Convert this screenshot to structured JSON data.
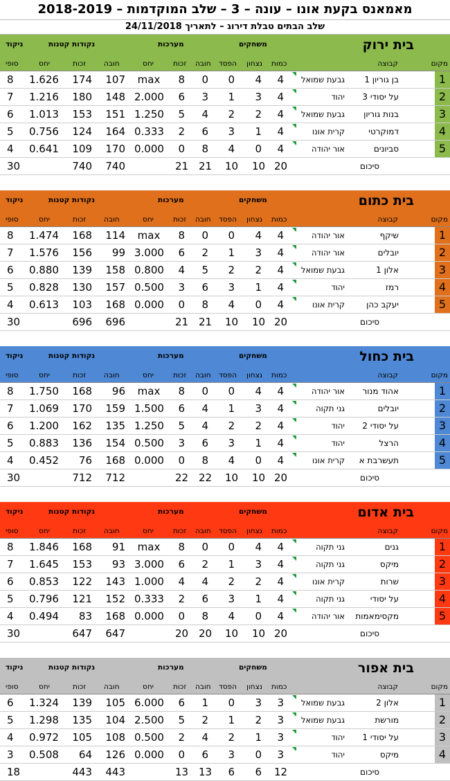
{
  "header": {
    "title": "מאמאנס בקעת אונו – עונה – 3 – שלב המוקדמות – 2018-2019",
    "subtitle": "שלב הבתים טבלת דירוג – לתאריך 24/11/2018"
  },
  "labels": {
    "players": "משחקים",
    "sets": "מערכות",
    "points": "נקודות קטנות",
    "score": "ניקוד",
    "rank": "מקום",
    "team": "קבוצה",
    "games": "כמות",
    "wins": "נצחון",
    "loss": "הפסד",
    "lost": "חובה",
    "won": "זכות",
    "ratio": "יחס",
    "final": "סופי",
    "total": "סיכום"
  },
  "houses": [
    {
      "name": "בית ירוק",
      "color": "#8cba4c",
      "rows": [
        {
          "rank": "1",
          "player": "בן גוריון 1",
          "team": "גבעת שמואל",
          "games": "4",
          "wins": "4",
          "loss": "0",
          "sl": "0",
          "sw": "8",
          "srat": "max",
          "pl": "107",
          "pw": "174",
          "prat": "1.626",
          "score": "8"
        },
        {
          "rank": "2",
          "player": "על יסודי 3",
          "team": "יהוד",
          "games": "4",
          "wins": "3",
          "loss": "1",
          "sl": "3",
          "sw": "6",
          "srat": "2.000",
          "pl": "148",
          "pw": "180",
          "prat": "1.216",
          "score": "7"
        },
        {
          "rank": "3",
          "player": "בנות גוריון",
          "team": "גבעת שמואל",
          "games": "4",
          "wins": "2",
          "loss": "2",
          "sl": "4",
          "sw": "5",
          "srat": "1.250",
          "pl": "151",
          "pw": "153",
          "prat": "1.013",
          "score": "6"
        },
        {
          "rank": "4",
          "player": "דמוקרטי",
          "team": "קרית אונו",
          "games": "4",
          "wins": "1",
          "loss": "3",
          "sl": "6",
          "sw": "2",
          "srat": "0.333",
          "pl": "164",
          "pw": "124",
          "prat": "0.756",
          "score": "5"
        },
        {
          "rank": "5",
          "player": "סביונים",
          "team": "אור יהודה",
          "games": "4",
          "wins": "0",
          "loss": "4",
          "sl": "8",
          "sw": "0",
          "srat": "0.000",
          "pl": "170",
          "pw": "109",
          "prat": "0.641",
          "score": "4"
        }
      ],
      "totals": {
        "games": "20",
        "wins": "10",
        "loss": "10",
        "sl": "21",
        "sw": "21",
        "pl": "740",
        "pw": "740",
        "score": "30"
      }
    },
    {
      "name": "בית כתום",
      "color": "#e0701b",
      "rows": [
        {
          "rank": "1",
          "player": "שיקף",
          "team": "אור יהודה",
          "games": "4",
          "wins": "4",
          "loss": "0",
          "sl": "0",
          "sw": "8",
          "srat": "max",
          "pl": "114",
          "pw": "168",
          "prat": "1.474",
          "score": "8"
        },
        {
          "rank": "2",
          "player": "יובלים",
          "team": "אור יהודה",
          "games": "4",
          "wins": "3",
          "loss": "1",
          "sl": "2",
          "sw": "6",
          "srat": "3.000",
          "pl": "99",
          "pw": "156",
          "prat": "1.576",
          "score": "7"
        },
        {
          "rank": "3",
          "player": "אלון 1",
          "team": "גבעת שמואל",
          "games": "4",
          "wins": "2",
          "loss": "2",
          "sl": "5",
          "sw": "4",
          "srat": "0.800",
          "pl": "158",
          "pw": "139",
          "prat": "0.880",
          "score": "6"
        },
        {
          "rank": "4",
          "player": "רמז",
          "team": "יהוד",
          "games": "4",
          "wins": "1",
          "loss": "3",
          "sl": "6",
          "sw": "3",
          "srat": "0.500",
          "pl": "157",
          "pw": "130",
          "prat": "0.828",
          "score": "5"
        },
        {
          "rank": "5",
          "player": "יעקב כהן",
          "team": "קרית אונו",
          "games": "4",
          "wins": "0",
          "loss": "4",
          "sl": "8",
          "sw": "0",
          "srat": "0.000",
          "pl": "168",
          "pw": "103",
          "prat": "0.613",
          "score": "4"
        }
      ],
      "totals": {
        "games": "20",
        "wins": "10",
        "loss": "10",
        "sl": "21",
        "sw": "21",
        "pl": "696",
        "pw": "696",
        "score": "30"
      }
    },
    {
      "name": "בית כחול",
      "color": "#4f88d4",
      "rows": [
        {
          "rank": "1",
          "player": "אהוד מנור",
          "team": "אור יהודה",
          "games": "4",
          "wins": "4",
          "loss": "0",
          "sl": "0",
          "sw": "8",
          "srat": "max",
          "pl": "96",
          "pw": "168",
          "prat": "1.750",
          "score": "8"
        },
        {
          "rank": "2",
          "player": "יובלים",
          "team": "גני תקוה",
          "games": "4",
          "wins": "3",
          "loss": "1",
          "sl": "4",
          "sw": "6",
          "srat": "1.500",
          "pl": "159",
          "pw": "170",
          "prat": "1.069",
          "score": "7"
        },
        {
          "rank": "3",
          "player": "על יסודי 2",
          "team": "יהוד",
          "games": "4",
          "wins": "2",
          "loss": "2",
          "sl": "4",
          "sw": "5",
          "srat": "1.250",
          "pl": "135",
          "pw": "162",
          "prat": "1.200",
          "score": "6"
        },
        {
          "rank": "4",
          "player": "הרצל",
          "team": "יהוד",
          "games": "4",
          "wins": "1",
          "loss": "3",
          "sl": "6",
          "sw": "3",
          "srat": "0.500",
          "pl": "154",
          "pw": "136",
          "prat": "0.883",
          "score": "5"
        },
        {
          "rank": "5",
          "player": "תעשרבת א",
          "team": "קרית אונו",
          "games": "4",
          "wins": "0",
          "loss": "4",
          "sl": "8",
          "sw": "0",
          "srat": "0.000",
          "pl": "168",
          "pw": "76",
          "prat": "0.452",
          "score": "4"
        }
      ],
      "totals": {
        "games": "20",
        "wins": "10",
        "loss": "10",
        "sl": "22",
        "sw": "22",
        "pl": "712",
        "pw": "712",
        "score": "30"
      }
    },
    {
      "name": "בית אדום",
      "color": "#ff3a12",
      "rows": [
        {
          "rank": "1",
          "player": "גנים",
          "team": "גני תקוה",
          "games": "4",
          "wins": "4",
          "loss": "0",
          "sl": "0",
          "sw": "8",
          "srat": "max",
          "pl": "91",
          "pw": "168",
          "prat": "1.846",
          "score": "8"
        },
        {
          "rank": "2",
          "player": "מיקס",
          "team": "גני תקוה",
          "games": "4",
          "wins": "3",
          "loss": "1",
          "sl": "2",
          "sw": "6",
          "srat": "3.000",
          "pl": "93",
          "pw": "153",
          "prat": "1.645",
          "score": "7"
        },
        {
          "rank": "3",
          "player": "שרות",
          "team": "קרית אונו",
          "games": "4",
          "wins": "2",
          "loss": "2",
          "sl": "4",
          "sw": "4",
          "srat": "1.000",
          "pl": "143",
          "pw": "122",
          "prat": "0.853",
          "score": "6"
        },
        {
          "rank": "4",
          "player": "על יסודי",
          "team": "גני תקוה",
          "games": "4",
          "wins": "1",
          "loss": "3",
          "sl": "6",
          "sw": "2",
          "srat": "0.333",
          "pl": "152",
          "pw": "121",
          "prat": "0.796",
          "score": "5"
        },
        {
          "rank": "5",
          "player": "מקסימאמות",
          "team": "אור יהודה",
          "games": "4",
          "wins": "0",
          "loss": "4",
          "sl": "8",
          "sw": "0",
          "srat": "0.000",
          "pl": "168",
          "pw": "83",
          "prat": "0.494",
          "score": "4"
        }
      ],
      "totals": {
        "games": "20",
        "wins": "10",
        "loss": "10",
        "sl": "20",
        "sw": "20",
        "pl": "647",
        "pw": "647",
        "score": "30"
      }
    },
    {
      "name": "בית אפור",
      "color": "#c0c0c0",
      "rows": [
        {
          "rank": "1",
          "player": "אלון 2",
          "team": "גבעת שמואל",
          "games": "3",
          "wins": "3",
          "loss": "0",
          "sl": "1",
          "sw": "6",
          "srat": "6.000",
          "pl": "105",
          "pw": "139",
          "prat": "1.324",
          "score": "6"
        },
        {
          "rank": "2",
          "player": "מורשת",
          "team": "גבעת שמואל",
          "games": "3",
          "wins": "2",
          "loss": "1",
          "sl": "2",
          "sw": "5",
          "srat": "2.500",
          "pl": "104",
          "pw": "135",
          "prat": "1.298",
          "score": "5"
        },
        {
          "rank": "3",
          "player": "על יסודי 1",
          "team": "יהוד",
          "games": "3",
          "wins": "1",
          "loss": "2",
          "sl": "4",
          "sw": "2",
          "srat": "0.500",
          "pl": "108",
          "pw": "105",
          "prat": "0.972",
          "score": "4"
        },
        {
          "rank": "4",
          "player": "מיקס",
          "team": "יהוד",
          "games": "3",
          "wins": "0",
          "loss": "3",
          "sl": "6",
          "sw": "0",
          "srat": "0.000",
          "pl": "126",
          "pw": "64",
          "prat": "0.508",
          "score": "3"
        }
      ],
      "totals": {
        "games": "12",
        "wins": "6",
        "loss": "6",
        "sl": "13",
        "sw": "13",
        "pl": "443",
        "pw": "443",
        "score": "18"
      }
    }
  ]
}
